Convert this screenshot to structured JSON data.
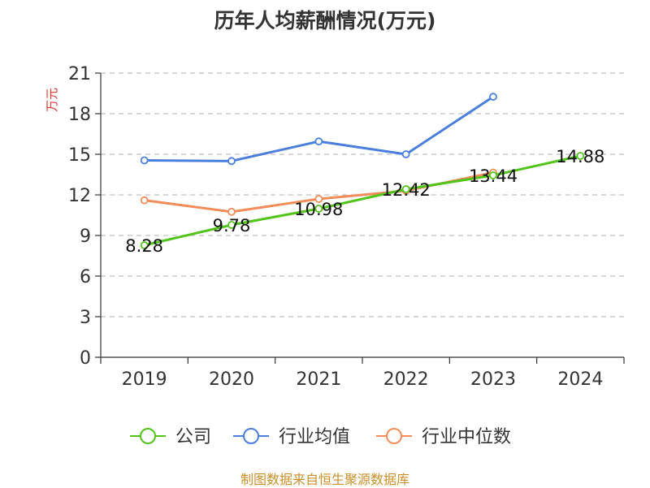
{
  "chart_data": {
    "type": "line",
    "title": "历年人均薪酬情况(万元)",
    "ylabel": "万元",
    "xlabel": "",
    "categories": [
      "2019",
      "2020",
      "2021",
      "2022",
      "2023",
      "2024"
    ],
    "ylim": [
      0,
      21
    ],
    "yticks": [
      0,
      3,
      6,
      9,
      12,
      15,
      18,
      21
    ],
    "grid": true,
    "legend_position": "bottom",
    "series": [
      {
        "name": "公司",
        "color": "#52c41a",
        "values": [
          8.28,
          9.78,
          10.98,
          12.42,
          13.44,
          14.88
        ],
        "labels": [
          "8.28",
          "9.78",
          "10.98",
          "12.42",
          "13.44",
          "14.88"
        ]
      },
      {
        "name": "行业均值",
        "color": "#4a7fdd",
        "values": [
          14.55,
          14.5,
          15.95,
          15.0,
          19.25,
          null
        ]
      },
      {
        "name": "行业中位数",
        "color": "#f28d5a",
        "values": [
          11.6,
          10.75,
          11.7,
          12.3,
          13.65,
          null
        ]
      }
    ]
  },
  "source": "制图数据来自恒生聚源数据库",
  "colors": {
    "unit": "#e03030",
    "source": "#c8902a",
    "grid": "#bfbfbf",
    "axis": "#333333"
  }
}
